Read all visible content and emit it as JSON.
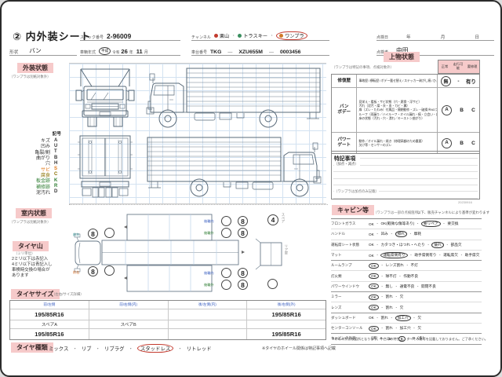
{
  "page": {
    "doc_no": "20230916"
  },
  "header": {
    "title": "② 内外装シート",
    "stock_label": "ストック番号",
    "stock_no": "2-96009",
    "shape_label": "形状",
    "shape_value": "バン",
    "year_label": "車輌年式",
    "era_circled": "平成",
    "era_alt": "令和",
    "year_value": "26",
    "year_unit": "年",
    "month_value": "11",
    "month_unit": "月",
    "channel_label": "チャンネル",
    "channel_separator": "・",
    "channels": [
      {
        "label": "栗山",
        "icon": "red-dot",
        "icon_color": "#c23b2e",
        "circled": false
      },
      {
        "label": "トラスキー",
        "icon": "green-dot",
        "icon_color": "#3a8f5f",
        "circled": false
      },
      {
        "label": "ワンプラ",
        "icon": "orange-dot",
        "icon_color": "#d07a28",
        "circled": true
      }
    ],
    "chassis_label": "車台番号",
    "chassis_code": "TKG",
    "chassis_dash": "—",
    "chassis_model": "XZU655M",
    "chassis_serial": "0003456",
    "inspect_date_label": "点検日",
    "date_year_unit": "年",
    "date_month_unit": "月",
    "date_day_unit": "日",
    "inspector_label": "点検者",
    "inspector_name": "中田"
  },
  "exterior": {
    "title": "外装状態",
    "note": "（ワンプラは別紙対象外）",
    "legend_title": "記号",
    "legend": [
      {
        "label": "キズ",
        "code": "A",
        "color": "#333333"
      },
      {
        "label": "凹み",
        "code": "U",
        "color": "#333333"
      },
      {
        "label": "亀裂/割",
        "code": "T",
        "color": "#333333"
      },
      {
        "label": "曲がり",
        "code": "B",
        "color": "#333333"
      },
      {
        "label": "穴",
        "code": "H",
        "color": "#333333"
      },
      {
        "label": "サビ",
        "code": "S",
        "color": "#e07818"
      },
      {
        "label": "腐食",
        "code": "C",
        "color": "#8a7000"
      },
      {
        "label": "板金跡",
        "code": "K",
        "color": "#2e7d32"
      },
      {
        "label": "補修跡",
        "code": "R",
        "color": "#2e7d32"
      },
      {
        "label": "泥汚れ",
        "code": "D",
        "color": "#333333"
      }
    ]
  },
  "interior": {
    "title": "室内状態",
    "note": "（ワンプラは別紙対象外）"
  },
  "tread": {
    "title": "タイヤ山",
    "note": "（ミリ単位）",
    "lines": [
      "2ミリ以下は赤記入",
      "4ミリ以下は青記入し",
      "車検時交換の場合が",
      "あります"
    ],
    "values": {
      "front_top": "8",
      "front_bottom": "8",
      "rear_top_outer": "8",
      "rear_top_inner": "8",
      "rear_bottom_outer": "8",
      "rear_bottom_inner": "8",
      "spare": "4"
    },
    "spare_label": "スペア",
    "rear_door_label": "リア扉",
    "front_left_label": "前左",
    "front_right_label": "前右",
    "rear_inner_label": "後輪内",
    "rear_outer_label": "後輪外"
  },
  "tire_size": {
    "title": "タイヤサイズ",
    "note": "（左右/サイズ詳細）",
    "headers": [
      "前/左側",
      "前/右側(内)",
      "後/左側(内)",
      "後/右側(外)"
    ],
    "rows": [
      [
        "195/85R16",
        "",
        "",
        "195/85R16"
      ],
      [
        "スペアA",
        "スペアB",
        "",
        ""
      ],
      [
        "195/85R16",
        "",
        "",
        "195/85R16"
      ]
    ]
  },
  "tire_type": {
    "title": "タイヤ種類",
    "separator": "・",
    "options": [
      {
        "label": "ミックス",
        "circled": false
      },
      {
        "label": "リブ",
        "circled": false
      },
      {
        "label": "リブラグ",
        "circled": false
      },
      {
        "label": "スタッドレス",
        "circled": true
      },
      {
        "label": "リトレッド",
        "circled": false
      }
    ],
    "note": "※タイヤのホイール関係は特記事項へ記載"
  },
  "body": {
    "title": "上物状態",
    "note": "（ワンプラは特記の事項、点検対象外）",
    "grade_headers": [
      "正常",
      "走行可能",
      "要修理"
    ],
    "rows": [
      {
        "label_lines": [
          "修復歴"
        ],
        "lines": [
          "事故歴 / 横転歴 / ボデー載せ替え / ステッカー剥がし痕 / ひょう害"
        ],
        "grades": [
          "無",
          "-",
          "有り"
        ],
        "circled": 0
      },
      {
        "label_lines": [
          "バン",
          "ボデー"
        ],
        "lines": [
          "見栄え・看板・サビ状態（穴・腐食・浮サビ）",
          "汚れ（泥汚・煤・灰・血・カビ・糞）",
          "扉（ズレ・たわみ）付属品・開閉動作・ズレ・破損 ※NGフォロー",
          "ルーフ（雨漏り／ハイルーフ・オイル漏れ・痕・立会い・内張り下垂）",
          "床の状態（汚れ・穴・潰れ／キーストン曲がり）"
        ],
        "grades": [
          "A",
          "B",
          "C"
        ],
        "circled": 0
      },
      {
        "label_lines": [
          "パワー",
          "ゲート"
        ],
        "lines": [
          "動作／オイル漏れ・焼き（修理高額のため重要）",
          "欠け等・センサーのズレ"
        ],
        "grades": [
          "A",
          "B",
          "C"
        ],
        "circled": 0
      }
    ]
  },
  "notes_box": {
    "title": "特記事項",
    "subtitle": "（加点・減点）",
    "note": "（ワンプラは加点のみ記載）"
  },
  "cabin": {
    "title": "キャビン等",
    "note": "（ワンプラは一部の点検箇所）",
    "right_note": "以下、販売チャンネルにより基準が変わります",
    "separator": "・",
    "rows": [
      {
        "label": "フロントガラス",
        "options": [
          "OK",
          "OK(軽微な傷等あり)",
          "要リペア",
          "要交換"
        ],
        "circled": 2
      },
      {
        "label": "ハンドル",
        "options": [
          "OK",
          "凹み",
          "擦れ",
          "摩耗"
        ],
        "circled": 2
      },
      {
        "label": "運転席シート状態",
        "options": [
          "OK",
          "カタつき・ほつれ・へたり",
          "破れ",
          "部品欠"
        ],
        "circled": 2
      },
      {
        "label": "マット",
        "options": [
          "OK",
          "運転席側有り",
          "助手席側有り",
          "運転席欠",
          "助手席欠"
        ],
        "circled": 1
      },
      {
        "label": "ルームランプ",
        "options": [
          "OK",
          "レンズ割れ",
          "不灯"
        ],
        "circled": 0
      },
      {
        "label": "灯火類",
        "options": [
          "OK",
          "球不灯",
          "作動不良"
        ],
        "circled": 0
      },
      {
        "label": "パワーウインドウ",
        "options": [
          "OK",
          "無し",
          "通電不良",
          "開閉不良"
        ],
        "circled": 0
      },
      {
        "label": "ミラー",
        "options": [
          "OK",
          "割れ",
          "欠"
        ],
        "circled": 0
      },
      {
        "label": "レンズ",
        "options": [
          "OK",
          "割れ",
          "欠"
        ],
        "circled": 0
      },
      {
        "label": "ダッシュボード",
        "options": [
          "OK",
          "割れ",
          "加工穴",
          "欠"
        ],
        "circled": 2
      },
      {
        "label": "センターコンソール",
        "options": [
          "OK",
          "割れ",
          "加工穴",
          "欠"
        ],
        "circled": 0
      },
      {
        "label": "キャビンの外装",
        "options": [
          "（評）A",
          "B",
          "C",
          "D（多）"
        ],
        "circled": 2
      }
    ],
    "footer": "※印のみが点検箇所となります。中古車の特性上、すべての傷等を記載しておりません。ご了承ください。"
  }
}
